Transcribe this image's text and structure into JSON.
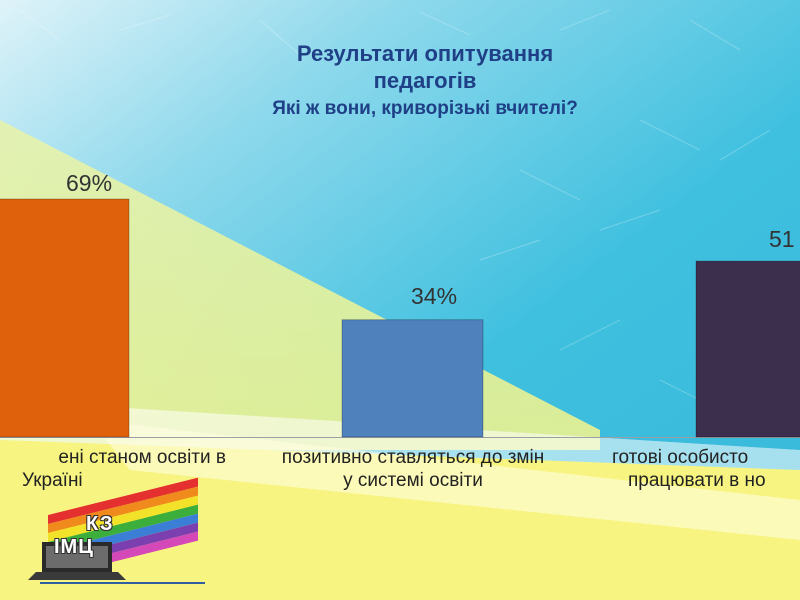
{
  "header": {
    "title_line1": "Результати опитування",
    "title_line2": "педагогів",
    "subtitle": "Які ж вони, криворізькі вчителі?"
  },
  "chart_data": {
    "type": "bar",
    "categories": [
      {
        "line1": "ені станом освіти в",
        "line2": "Україні"
      },
      {
        "line1": "позитивно ставляться до змін",
        "line2": "у системі освіти"
      },
      {
        "line1": "готові особисто",
        "line2": "працювати в но"
      }
    ],
    "values": [
      69,
      34,
      51
    ],
    "data_labels": [
      "69%",
      "34%",
      "51"
    ],
    "ylim": [
      0,
      100
    ],
    "colors": [
      "#e0610c",
      "#4f81bd",
      "#3b2f4d"
    ]
  },
  "logo": {
    "line1": "КЗ",
    "line2": "ІМЦ"
  },
  "colors": {
    "sky": "#3ec0df",
    "title": "#1f3f86"
  }
}
